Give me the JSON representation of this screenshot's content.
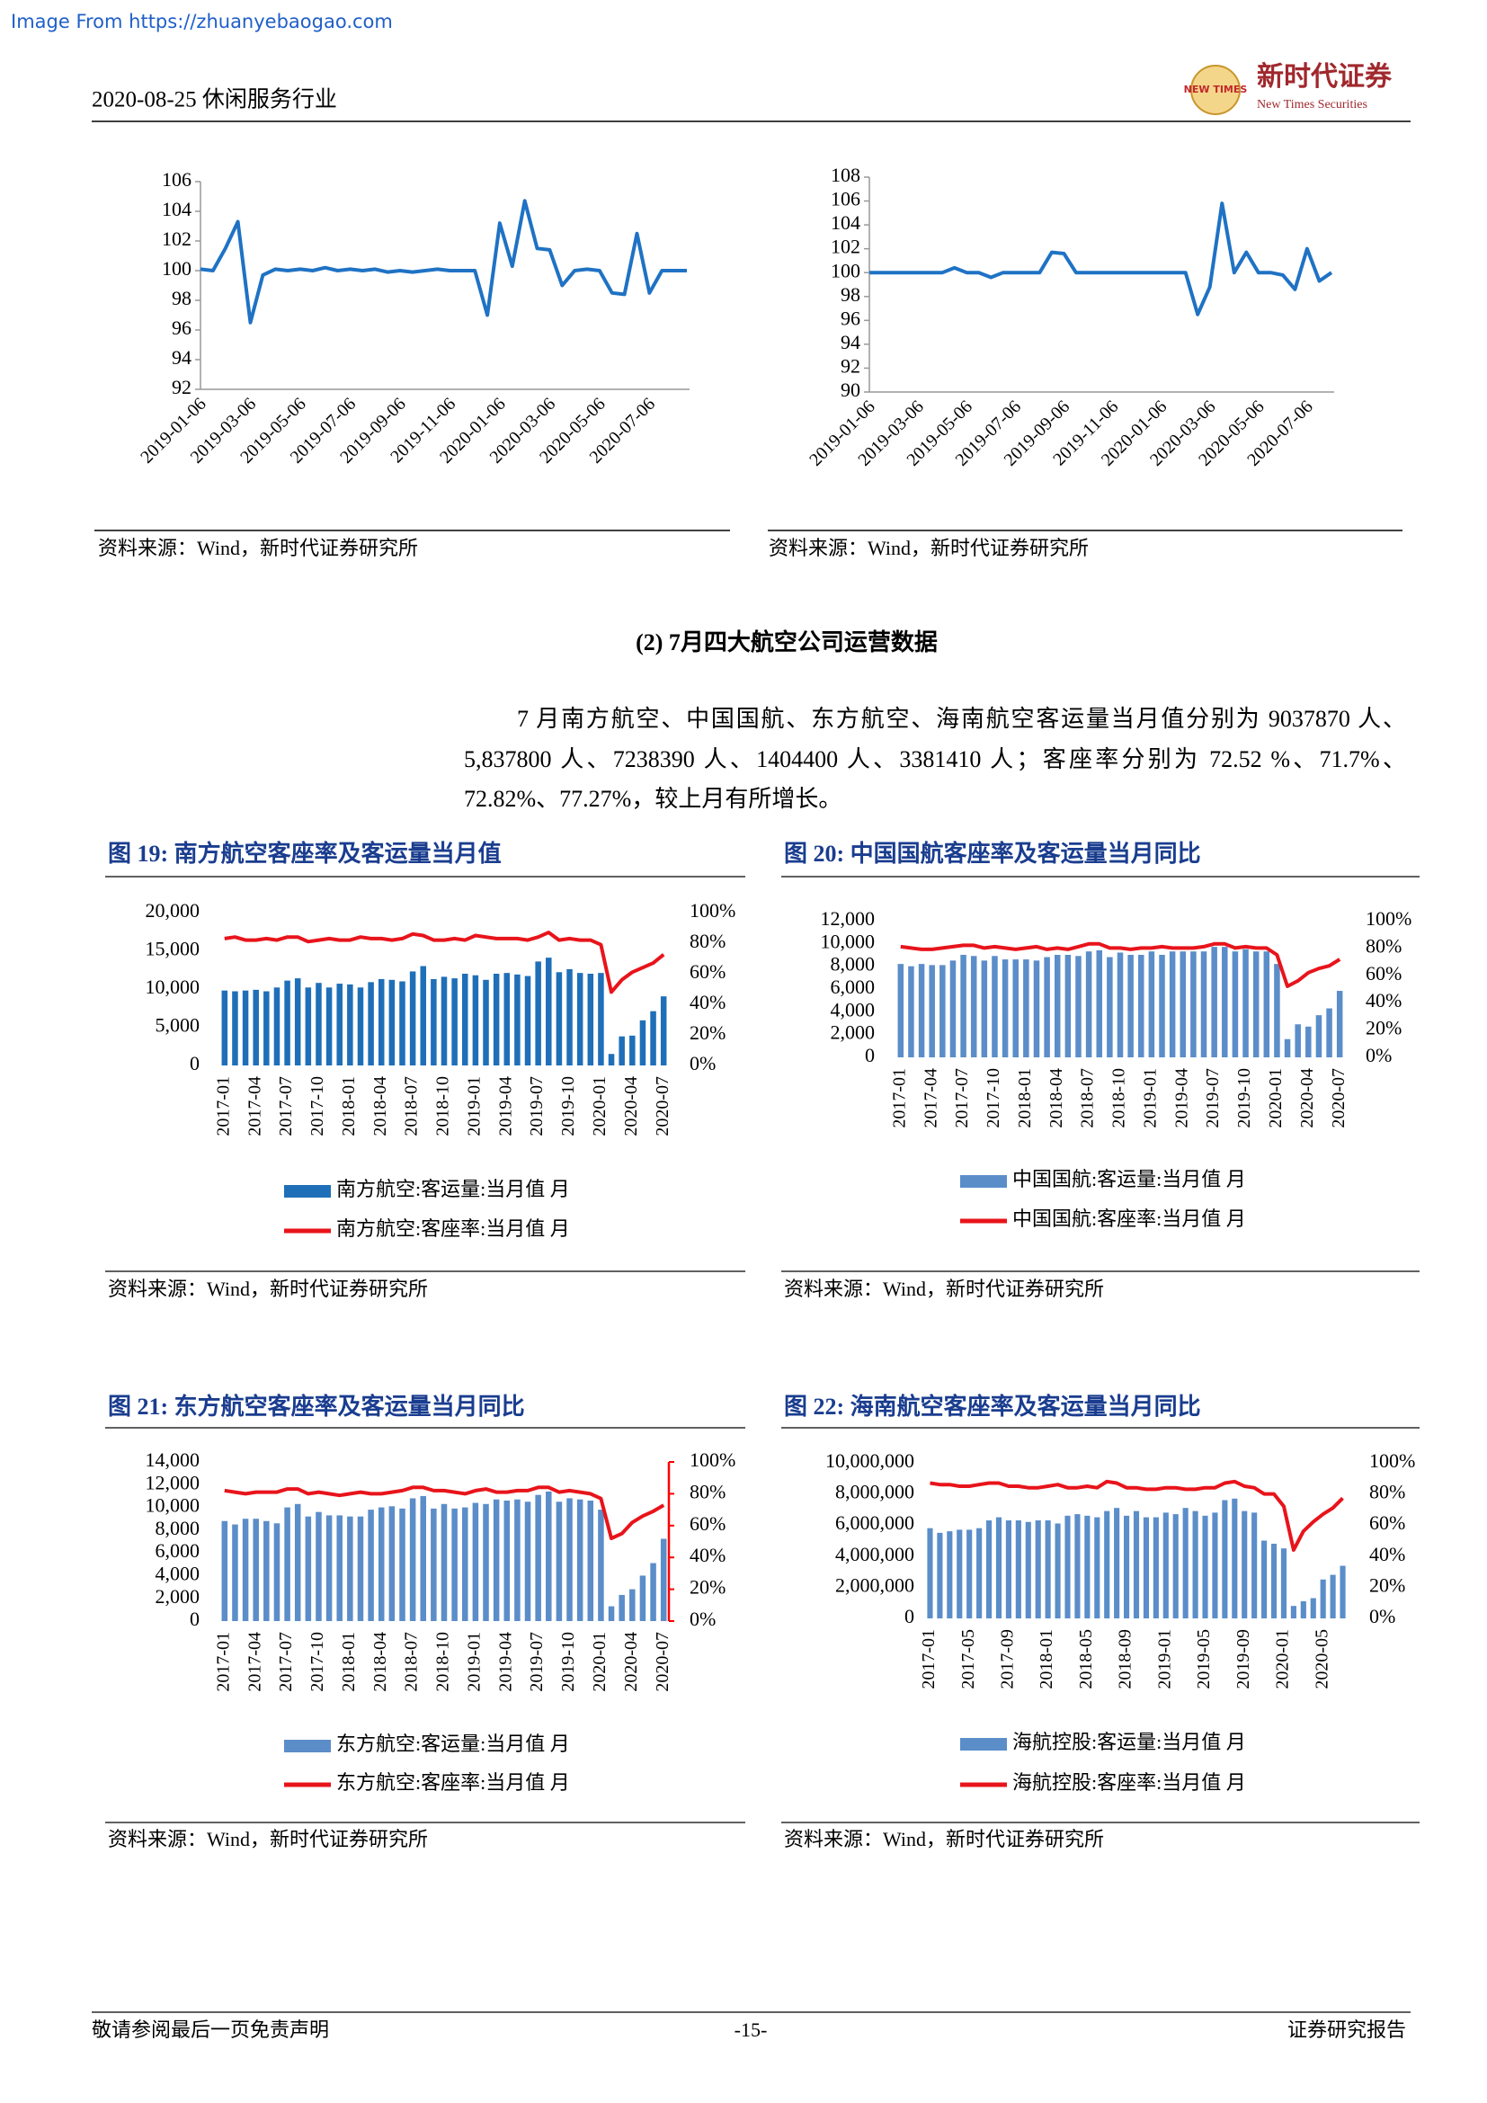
{
  "watermark": "Image From https://zhuanyebaogao.com",
  "header": {
    "date_sector": "2020-08-25 休闲服务行业",
    "logo": "NEW TIMES",
    "brand": "新时代证券",
    "brand_en": "New Times Securities"
  },
  "section": {
    "heading": "(2) 7月四大航空公司运营数据",
    "paragraph": "7 月南方航空、中国国航、东方航空、海南航空客运量当月值分别为 9037870 人、5,837800 人、7238390 人、1404400 人、3381410 人；客座率分别为 72.52 %、71.7%、72.82%、77.27%，较上月有所增长。"
  },
  "footer": {
    "left": "敬请参阅最后一页免责声明",
    "page": "-15-",
    "right": "证券研究报告"
  },
  "chart_data": [
    {
      "type": "line",
      "source": "资料来源：Wind，新时代证券研究所",
      "color": "#1f72c4",
      "categories": [
        "2019-01-06",
        null,
        null,
        null,
        "2019-03-06",
        null,
        null,
        null,
        "2019-05-06",
        null,
        null,
        null,
        "2019-07-06",
        null,
        null,
        null,
        "2019-09-06",
        null,
        null,
        null,
        "2019-11-06",
        null,
        null,
        null,
        "2020-01-06",
        null,
        null,
        null,
        "2020-03-06",
        null,
        null,
        null,
        "2020-05-06",
        null,
        null,
        null,
        "2020-07-06",
        null,
        null,
        null
      ],
      "values": [
        100.1,
        100.0,
        101.5,
        103.3,
        96.5,
        99.7,
        100.1,
        100.0,
        100.1,
        100.0,
        100.2,
        100.0,
        100.1,
        100.0,
        100.1,
        99.9,
        100.0,
        99.9,
        100.0,
        100.1,
        100.0,
        100.0,
        100.0,
        97.0,
        103.2,
        100.3,
        104.7,
        101.5,
        101.4,
        99.0,
        100.0,
        100.1,
        100.0,
        98.5,
        98.4,
        102.5,
        98.5,
        100.0,
        100.0,
        100.0
      ],
      "ylim": [
        92,
        106
      ],
      "yticks": [
        92,
        94,
        96,
        98,
        100,
        102,
        104,
        106
      ]
    },
    {
      "type": "line",
      "source": "资料来源：Wind，新时代证券研究所",
      "color": "#1f72c4",
      "categories": [
        "2019-01-06",
        null,
        null,
        null,
        "2019-03-06",
        null,
        null,
        null,
        "2019-05-06",
        null,
        null,
        null,
        "2019-07-06",
        null,
        null,
        null,
        "2019-09-06",
        null,
        null,
        null,
        "2019-11-06",
        null,
        null,
        null,
        "2020-01-06",
        null,
        null,
        null,
        "2020-03-06",
        null,
        null,
        null,
        "2020-05-06",
        null,
        null,
        null,
        "2020-07-06",
        null,
        null
      ],
      "values": [
        100,
        100,
        100,
        100,
        100,
        100,
        100,
        100.4,
        100,
        100,
        99.6,
        100,
        100,
        100,
        100,
        101.7,
        101.6,
        100,
        100,
        100,
        100,
        100,
        100,
        100,
        100,
        100,
        100,
        96.5,
        98.8,
        105.8,
        100,
        101.7,
        100,
        100,
        99.8,
        98.6,
        102,
        99.3,
        100
      ],
      "ylim": [
        90,
        108
      ],
      "yticks": [
        90,
        92,
        94,
        96,
        98,
        100,
        102,
        104,
        106,
        108
      ]
    },
    {
      "type": "combo",
      "title": "图 19: 南方航空客座率及客运量当月值",
      "source": "资料来源：Wind，新时代证券研究所",
      "categories": [
        "2017-01",
        null,
        null,
        "2017-04",
        null,
        null,
        "2017-07",
        null,
        null,
        "2017-10",
        null,
        null,
        "2018-01",
        null,
        null,
        "2018-04",
        null,
        null,
        "2018-07",
        null,
        null,
        "2018-10",
        null,
        null,
        "2019-01",
        null,
        null,
        "2019-04",
        null,
        null,
        "2019-07",
        null,
        null,
        "2019-10",
        null,
        null,
        "2020-01",
        null,
        null,
        "2020-04",
        null,
        null,
        "2020-07"
      ],
      "series": [
        {
          "name": "南方航空:客运量:当月值 月",
          "type": "bar",
          "color": "#1f6fb8",
          "values": [
            9800,
            9700,
            9800,
            9900,
            9700,
            10200,
            11100,
            11400,
            10200,
            10800,
            10200,
            10700,
            10600,
            10200,
            10900,
            11300,
            11200,
            11000,
            12300,
            13000,
            11300,
            11600,
            11400,
            12000,
            11800,
            11200,
            12000,
            12100,
            11900,
            11700,
            13600,
            14100,
            12200,
            12600,
            12100,
            12000,
            12100,
            1500,
            3800,
            3900,
            5900,
            7100,
            9038
          ]
        },
        {
          "name": "南方航空:客座率:当月值 月",
          "type": "line",
          "axis": "y2",
          "color": "#e8141b",
          "values": [
            83,
            84,
            82,
            82,
            83,
            82,
            84,
            84,
            81,
            82,
            83,
            82,
            82,
            84,
            83,
            83,
            82,
            83,
            86,
            85,
            82,
            82,
            83,
            82,
            85,
            84,
            83,
            83,
            83,
            82,
            84,
            87,
            82,
            83,
            82,
            82,
            79,
            48,
            56,
            61,
            64,
            67,
            72.52
          ]
        }
      ],
      "ylim": [
        0,
        20000
      ],
      "yticks": [
        0,
        {
          "value": 5000,
          "label": "5,000"
        },
        {
          "value": 10000,
          "label": "10,000"
        },
        {
          "value": 15000,
          "label": "15,000"
        },
        {
          "value": 20000,
          "label": "20,000"
        }
      ],
      "y2lim": [
        0,
        100
      ],
      "y2ticks": [
        {
          "value": 0,
          "label": "0%"
        },
        {
          "value": 20,
          "label": "20%"
        },
        {
          "value": 40,
          "label": "40%"
        },
        {
          "value": 60,
          "label": "60%"
        },
        {
          "value": 80,
          "label": "80%"
        },
        {
          "value": 100,
          "label": "100%"
        }
      ]
    },
    {
      "type": "combo",
      "title": "图 20: 中国国航客座率及客运量当月同比",
      "source": "资料来源：Wind，新时代证券研究所",
      "categories": [
        "2017-01",
        null,
        null,
        "2017-04",
        null,
        null,
        "2017-07",
        null,
        null,
        "2017-10",
        null,
        null,
        "2018-01",
        null,
        null,
        "2018-04",
        null,
        null,
        "2018-07",
        null,
        null,
        "2018-10",
        null,
        null,
        "2019-01",
        null,
        null,
        "2019-04",
        null,
        null,
        "2019-07",
        null,
        null,
        "2019-10",
        null,
        null,
        "2020-01",
        null,
        null,
        "2020-04",
        null,
        null,
        "2020-07"
      ],
      "series": [
        {
          "name": "中国国航:客运量:当月值 月",
          "type": "bar",
          "color": "#5b8dc9",
          "values": [
            8200,
            8000,
            8200,
            8100,
            8100,
            8500,
            9000,
            8900,
            8500,
            8900,
            8600,
            8600,
            8600,
            8500,
            8800,
            9000,
            9000,
            8900,
            9300,
            9400,
            8800,
            9200,
            9000,
            9000,
            9300,
            9000,
            9300,
            9300,
            9300,
            9300,
            9700,
            9700,
            9300,
            9500,
            9300,
            9300,
            8200,
            1600,
            2900,
            2700,
            3700,
            4300,
            5838
          ]
        },
        {
          "name": "中国国航:客座率:当月值 月",
          "type": "line",
          "axis": "y2",
          "color": "#e8141b",
          "values": [
            81,
            80,
            79,
            79,
            80,
            81,
            82,
            82,
            80,
            81,
            80,
            79,
            80,
            81,
            79,
            80,
            79,
            81,
            83,
            83,
            80,
            80,
            79,
            80,
            80,
            81,
            80,
            80,
            80,
            81,
            83,
            83,
            80,
            81,
            80,
            80,
            75,
            52,
            56,
            62,
            65,
            67,
            71.7
          ]
        }
      ],
      "ylim": [
        0,
        12000
      ],
      "yticks": [
        0,
        {
          "value": 2000,
          "label": "2,000"
        },
        {
          "value": 4000,
          "label": "4,000"
        },
        {
          "value": 6000,
          "label": "6,000"
        },
        {
          "value": 8000,
          "label": "8,000"
        },
        {
          "value": 10000,
          "label": "10,000"
        },
        {
          "value": 12000,
          "label": "12,000"
        }
      ],
      "y2lim": [
        0,
        100
      ],
      "y2ticks": [
        {
          "value": 0,
          "label": "0%"
        },
        {
          "value": 20,
          "label": "20%"
        },
        {
          "value": 40,
          "label": "40%"
        },
        {
          "value": 60,
          "label": "60%"
        },
        {
          "value": 80,
          "label": "80%"
        },
        {
          "value": 100,
          "label": "100%"
        }
      ]
    },
    {
      "type": "combo",
      "title": "图 21: 东方航空客座率及客运量当月同比",
      "source": "资料来源：Wind，新时代证券研究所",
      "y2_axis_color": "#ff0000",
      "categories": [
        "2017-01",
        null,
        null,
        "2017-04",
        null,
        null,
        "2017-07",
        null,
        null,
        "2017-10",
        null,
        null,
        "2018-01",
        null,
        null,
        "2018-04",
        null,
        null,
        "2018-07",
        null,
        null,
        "2018-10",
        null,
        null,
        "2019-01",
        null,
        null,
        "2019-04",
        null,
        null,
        "2019-07",
        null,
        null,
        "2019-10",
        null,
        null,
        "2020-01",
        null,
        null,
        "2020-04",
        null,
        null,
        "2020-07"
      ],
      "series": [
        {
          "name": "东方航空:客运量:当月值 月",
          "type": "bar",
          "color": "#5b8dc9",
          "values": [
            8800,
            8500,
            9000,
            9000,
            8800,
            8600,
            10000,
            10300,
            9200,
            9600,
            9300,
            9300,
            9200,
            9200,
            9800,
            10000,
            10100,
            9900,
            10800,
            11000,
            9900,
            10300,
            9900,
            10000,
            10400,
            10300,
            10700,
            10600,
            10700,
            10500,
            11100,
            11400,
            10500,
            10800,
            10700,
            10600,
            9800,
            1300,
            2300,
            2800,
            4000,
            5100,
            7238
          ]
        },
        {
          "name": "东方航空:客座率:当月值 月",
          "type": "line",
          "axis": "y2",
          "color": "#e8141b",
          "values": [
            82,
            81,
            80,
            81,
            81,
            81,
            83,
            83,
            80,
            81,
            80,
            79,
            80,
            81,
            80,
            80,
            81,
            82,
            84,
            84,
            82,
            82,
            81,
            80,
            82,
            83,
            81,
            81,
            82,
            82,
            84,
            84,
            81,
            82,
            81,
            80,
            77,
            52,
            55,
            62,
            66,
            69,
            72.82
          ]
        }
      ],
      "ylim": [
        0,
        14000
      ],
      "yticks": [
        0,
        {
          "value": 2000,
          "label": "2,000"
        },
        {
          "value": 4000,
          "label": "4,000"
        },
        {
          "value": 6000,
          "label": "6,000"
        },
        {
          "value": 8000,
          "label": "8,000"
        },
        {
          "value": 10000,
          "label": "10,000"
        },
        {
          "value": 12000,
          "label": "12,000"
        },
        {
          "value": 14000,
          "label": "14,000"
        }
      ],
      "y2lim": [
        0,
        100
      ],
      "y2ticks": [
        {
          "value": 0,
          "label": "0%"
        },
        {
          "value": 20,
          "label": "20%"
        },
        {
          "value": 40,
          "label": "40%"
        },
        {
          "value": 60,
          "label": "60%"
        },
        {
          "value": 80,
          "label": "80%"
        },
        {
          "value": 100,
          "label": "100%"
        }
      ]
    },
    {
      "type": "combo",
      "title": "图 22: 海南航空客座率及客运量当月同比",
      "source": "资料来源：Wind，新时代证券研究所",
      "categories": [
        "2017-01",
        null,
        null,
        null,
        "2017-05",
        null,
        null,
        null,
        "2017-09",
        null,
        null,
        null,
        "2018-01",
        null,
        null,
        null,
        "2018-05",
        null,
        null,
        null,
        "2018-09",
        null,
        null,
        null,
        "2019-01",
        null,
        null,
        null,
        "2019-05",
        null,
        null,
        null,
        "2019-09",
        null,
        null,
        null,
        "2020-01",
        null,
        null,
        null,
        "2020-05",
        null,
        null
      ],
      "series": [
        {
          "name": "海航控股:客运量:当月值 月",
          "type": "bar",
          "color": "#5b8dc9",
          "values": [
            5800000,
            5500000,
            5600000,
            5700000,
            5700000,
            5800000,
            6300000,
            6500000,
            6300000,
            6300000,
            6200000,
            6300000,
            6300000,
            6100000,
            6600000,
            6700000,
            6600000,
            6500000,
            6900000,
            7100000,
            6600000,
            6900000,
            6500000,
            6500000,
            6800000,
            6700000,
            7100000,
            6900000,
            6600000,
            6800000,
            7600000,
            7700000,
            6900000,
            6800000,
            5000000,
            4800000,
            4500000,
            800000,
            1100000,
            1300000,
            2500000,
            2800000,
            3381410
          ]
        },
        {
          "name": "海航控股:客座率:当月值 月",
          "type": "line",
          "axis": "y2",
          "color": "#e8141b",
          "values": [
            87,
            86,
            86,
            85,
            85,
            86,
            87,
            87,
            85,
            85,
            84,
            84,
            85,
            86,
            84,
            84,
            85,
            84,
            88,
            87,
            84,
            84,
            83,
            83,
            84,
            84,
            83,
            83,
            84,
            84,
            87,
            88,
            85,
            84,
            80,
            80,
            72,
            44,
            56,
            62,
            67,
            71,
            77.27
          ]
        }
      ],
      "ylim": [
        0,
        10000000
      ],
      "yticks": [
        0,
        {
          "value": 2000000,
          "label": "2,000,000"
        },
        {
          "value": 4000000,
          "label": "4,000,000"
        },
        {
          "value": 6000000,
          "label": "6,000,000"
        },
        {
          "value": 8000000,
          "label": "8,000,000"
        },
        {
          "value": 10000000,
          "label": "10,000,000"
        }
      ],
      "y2lim": [
        0,
        100
      ],
      "y2ticks": [
        {
          "value": 0,
          "label": "0%"
        },
        {
          "value": 20,
          "label": "20%"
        },
        {
          "value": 40,
          "label": "40%"
        },
        {
          "value": 60,
          "label": "60%"
        },
        {
          "value": 80,
          "label": "80%"
        },
        {
          "value": 100,
          "label": "100%"
        }
      ]
    }
  ]
}
